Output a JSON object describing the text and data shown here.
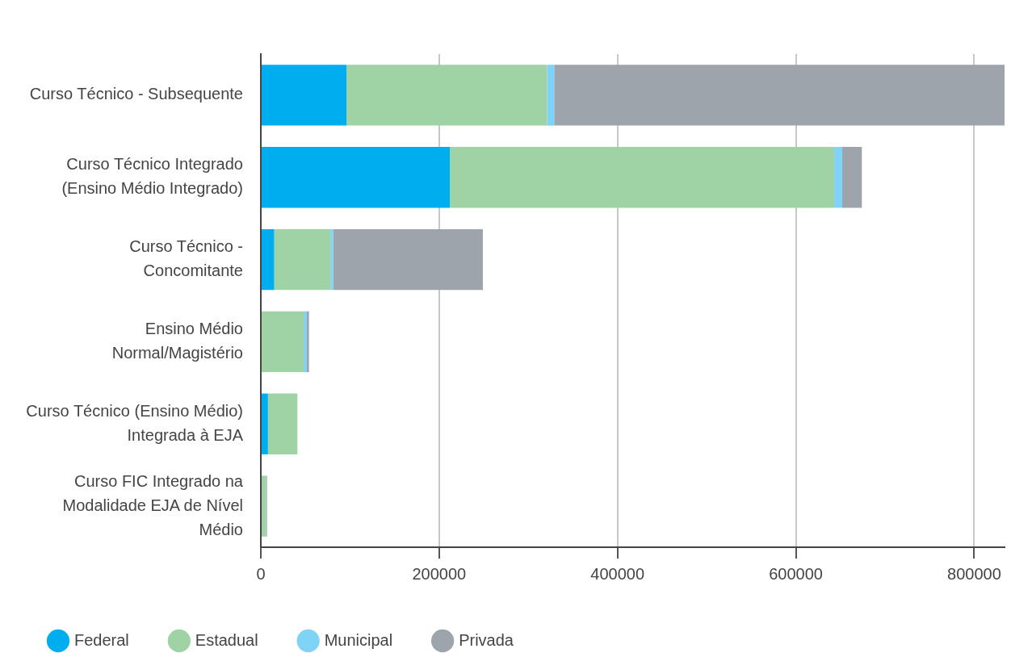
{
  "chart_data": {
    "type": "bar",
    "orientation": "horizontal",
    "stacked": true,
    "categories": [
      "Curso Técnico - Subsequente",
      "Curso Técnico Integrado\n(Ensino Médio Integrado)",
      "Curso Técnico -\nConcomitante",
      "Ensino Médio\nNormal/Magistério",
      "Curso Técnico (Ensino Médio)\nIntegrada à EJA",
      "Curso FIC Integrado na\nModalidade EJA de Nível\nMédio"
    ],
    "series": [
      {
        "name": "Federal",
        "color": "#00aeef",
        "values": [
          96000,
          212000,
          15000,
          0,
          8000,
          0
        ]
      },
      {
        "name": "Estadual",
        "color": "#9fd3a6",
        "values": [
          225000,
          431000,
          63000,
          48000,
          33000,
          6000
        ]
      },
      {
        "name": "Municipal",
        "color": "#7fd3f7",
        "values": [
          8000,
          9000,
          3000,
          3000,
          0,
          0
        ]
      },
      {
        "name": "Privada",
        "color": "#9da4ab",
        "values": [
          505000,
          22000,
          168000,
          3000,
          0,
          1000
        ]
      }
    ],
    "xlim": [
      0,
      834000
    ],
    "xticks": [
      0,
      200000,
      400000,
      600000,
      800000
    ],
    "grid": "x",
    "legend": "bottom left"
  }
}
